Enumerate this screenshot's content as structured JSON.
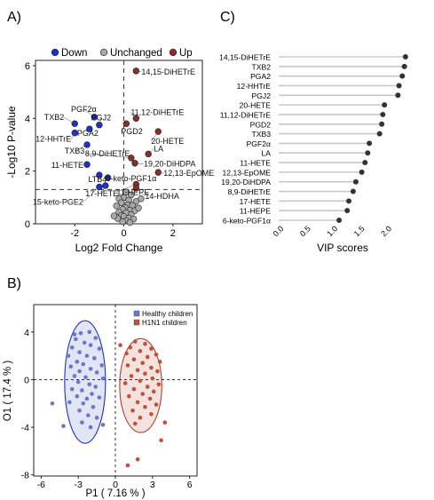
{
  "panel_labels": {
    "a": "A)",
    "b": "B)",
    "c": "C)"
  },
  "colors": {
    "down": "#1f2fc9",
    "unchanged": "#a9a9a9",
    "up": "#8b2e24",
    "healthy": "#6a78c8",
    "h1n1": "#c2503c",
    "vip_dot": "#333333",
    "vip_stem": "#c8c8c8"
  },
  "chart_data": [
    {
      "panel": "A",
      "type": "scatter",
      "title": "",
      "xlabel": "Log2 Fold Change",
      "ylabel": "-Log10 P-value",
      "xlim": [
        -3.6,
        3.2
      ],
      "ylim": [
        0,
        6.2
      ],
      "xticks": [
        -2,
        0,
        2
      ],
      "yticks": [
        0,
        2,
        4,
        6
      ],
      "thresholds": {
        "x": 0,
        "y": 1.3
      },
      "legend": {
        "position": "top",
        "entries": [
          "Down",
          "Unchanged",
          "Up"
        ]
      },
      "series": [
        {
          "name": "Down",
          "color_key": "down",
          "points": [
            {
              "x": -1.2,
              "y": 4.05,
              "label": "PGF2α"
            },
            {
              "x": -2.0,
              "y": 3.8,
              "label": "TXB2"
            },
            {
              "x": -1.0,
              "y": 3.75,
              "label": "PGJ2"
            },
            {
              "x": -1.4,
              "y": 3.6,
              "label": "PGA2"
            },
            {
              "x": -2.0,
              "y": 3.45,
              "label": "12-HHTrE"
            },
            {
              "x": -1.5,
              "y": 3.0,
              "label": "TXB3"
            },
            {
              "x": -1.5,
              "y": 2.25,
              "label": "11-HETE"
            },
            {
              "x": -1.0,
              "y": 1.85,
              "label": "LTB4"
            },
            {
              "x": -0.65,
              "y": 1.75,
              "label": "6-keto-PGF1α"
            },
            {
              "x": -0.75,
              "y": 1.45,
              "label": "17-HETE"
            },
            {
              "x": -1.0,
              "y": 1.4,
              "label": "15-keto-PGE2"
            }
          ]
        },
        {
          "name": "Unchanged",
          "color_key": "unchanged",
          "points": [
            {
              "x": 0.1,
              "y": 1.2
            },
            {
              "x": 0.3,
              "y": 1.1
            },
            {
              "x": 0.0,
              "y": 1.0
            },
            {
              "x": -0.2,
              "y": 0.95
            },
            {
              "x": 0.2,
              "y": 0.9
            },
            {
              "x": 0.5,
              "y": 0.85
            },
            {
              "x": -0.1,
              "y": 0.8
            },
            {
              "x": 0.15,
              "y": 0.72
            },
            {
              "x": 0.35,
              "y": 0.7
            },
            {
              "x": -0.3,
              "y": 0.68
            },
            {
              "x": 0.05,
              "y": 0.62
            },
            {
              "x": -0.05,
              "y": 0.55
            },
            {
              "x": 0.25,
              "y": 0.52
            },
            {
              "x": 0.45,
              "y": 0.5
            },
            {
              "x": -0.2,
              "y": 0.45
            },
            {
              "x": 0.1,
              "y": 0.42
            },
            {
              "x": 0.3,
              "y": 0.35
            },
            {
              "x": -0.1,
              "y": 0.32
            },
            {
              "x": 0.0,
              "y": 0.28
            },
            {
              "x": 0.2,
              "y": 0.22
            },
            {
              "x": -0.25,
              "y": 0.2
            },
            {
              "x": 0.4,
              "y": 0.18
            },
            {
              "x": 0.1,
              "y": 0.12
            },
            {
              "x": -0.05,
              "y": 0.08
            },
            {
              "x": 0.25,
              "y": 0.05
            },
            {
              "x": 0.6,
              "y": 0.6
            },
            {
              "x": -0.4,
              "y": 0.3
            },
            {
              "x": 0.7,
              "y": 0.95
            }
          ]
        },
        {
          "name": "Up",
          "color_key": "up",
          "points": [
            {
              "x": 0.5,
              "y": 5.8,
              "label": "14,15-DiHETrE"
            },
            {
              "x": 0.5,
              "y": 4.0,
              "label": "11,12-DiHETrE"
            },
            {
              "x": 0.1,
              "y": 3.8,
              "label": "PGD2"
            },
            {
              "x": 1.4,
              "y": 3.5,
              "label": "20-HETE"
            },
            {
              "x": 1.0,
              "y": 2.65,
              "label": "LA"
            },
            {
              "x": 0.3,
              "y": 2.5,
              "label": "8,9-DiHETrE"
            },
            {
              "x": 0.45,
              "y": 2.3,
              "label": "19,20-DiHDPA"
            },
            {
              "x": 1.4,
              "y": 1.95,
              "label": "12,13-EpOME"
            },
            {
              "x": 0.5,
              "y": 1.5,
              "label": "11-HEPE"
            },
            {
              "x": 0.5,
              "y": 1.35,
              "label": "14-HDHA"
            }
          ]
        }
      ]
    },
    {
      "panel": "B",
      "type": "scatter",
      "title": "",
      "xlabel": "P1 ( 7.16 % )",
      "ylabel": "O1 ( 17.4 % )",
      "xlim": [
        -6.6,
        6.6
      ],
      "ylim": [
        -8.1,
        6.3
      ],
      "xticks": [
        -6,
        -3,
        0,
        3,
        6
      ],
      "yticks": [
        -8,
        -4,
        0,
        4
      ],
      "legend": {
        "position": "top-right",
        "entries": [
          "Healthy children",
          "H1N1 children"
        ]
      },
      "series": [
        {
          "name": "Healthy children",
          "color_key": "healthy",
          "ellipse": {
            "cx": -2.45,
            "cy": -0.2,
            "rx": 1.65,
            "ry": 5.15
          },
          "points": [
            {
              "x": -2.8,
              "y": 3.9
            },
            {
              "x": -2.1,
              "y": 4.0
            },
            {
              "x": -3.2,
              "y": 3.4
            },
            {
              "x": -1.6,
              "y": 3.5
            },
            {
              "x": -2.5,
              "y": 3.1
            },
            {
              "x": -3.5,
              "y": 2.7
            },
            {
              "x": -2.0,
              "y": 2.9
            },
            {
              "x": -1.3,
              "y": 2.6
            },
            {
              "x": -2.9,
              "y": 2.3
            },
            {
              "x": -3.8,
              "y": 2.0
            },
            {
              "x": -2.3,
              "y": 2.0
            },
            {
              "x": -1.7,
              "y": 1.8
            },
            {
              "x": -3.1,
              "y": 1.5
            },
            {
              "x": -2.6,
              "y": 1.3
            },
            {
              "x": -1.1,
              "y": 1.2
            },
            {
              "x": -3.6,
              "y": 1.1
            },
            {
              "x": -2.0,
              "y": 0.9
            },
            {
              "x": -2.9,
              "y": 0.7
            },
            {
              "x": -1.5,
              "y": 0.6
            },
            {
              "x": -3.3,
              "y": 0.3
            },
            {
              "x": -2.4,
              "y": 0.2
            },
            {
              "x": -1.0,
              "y": 0.1
            },
            {
              "x": -3.0,
              "y": -0.2
            },
            {
              "x": -2.1,
              "y": -0.4
            },
            {
              "x": -1.6,
              "y": -0.6
            },
            {
              "x": -3.5,
              "y": -0.8
            },
            {
              "x": -2.7,
              "y": -0.9
            },
            {
              "x": -1.9,
              "y": -1.2
            },
            {
              "x": -3.1,
              "y": -1.4
            },
            {
              "x": -2.3,
              "y": -1.6
            },
            {
              "x": -1.3,
              "y": -1.5
            },
            {
              "x": -3.7,
              "y": -1.9
            },
            {
              "x": -2.6,
              "y": -2.0
            },
            {
              "x": -1.8,
              "y": -2.3
            },
            {
              "x": -2.9,
              "y": -2.6
            },
            {
              "x": -2.2,
              "y": -3.0
            },
            {
              "x": -1.5,
              "y": -3.2
            },
            {
              "x": -2.7,
              "y": -3.6
            },
            {
              "x": -2.0,
              "y": -4.0
            },
            {
              "x": -4.2,
              "y": -3.9
            },
            {
              "x": -5.1,
              "y": -2.0
            },
            {
              "x": -1.0,
              "y": -3.8
            },
            {
              "x": -3.3,
              "y": 3.8
            }
          ]
        },
        {
          "name": "H1N1 children",
          "color_key": "h1n1",
          "ellipse": {
            "cx": 2.05,
            "cy": -0.5,
            "rx": 1.7,
            "ry": 3.95
          },
          "points": [
            {
              "x": 1.6,
              "y": 3.2
            },
            {
              "x": 2.4,
              "y": 3.0
            },
            {
              "x": 1.2,
              "y": 2.7
            },
            {
              "x": 2.9,
              "y": 2.6
            },
            {
              "x": 2.0,
              "y": 2.4
            },
            {
              "x": 0.9,
              "y": 2.2
            },
            {
              "x": 3.3,
              "y": 2.1
            },
            {
              "x": 2.6,
              "y": 1.9
            },
            {
              "x": 1.5,
              "y": 1.7
            },
            {
              "x": 3.6,
              "y": 1.5
            },
            {
              "x": 2.2,
              "y": 1.4
            },
            {
              "x": 1.0,
              "y": 1.2
            },
            {
              "x": 2.9,
              "y": 1.0
            },
            {
              "x": 1.8,
              "y": 0.8
            },
            {
              "x": 3.4,
              "y": 0.7
            },
            {
              "x": 2.4,
              "y": 0.5
            },
            {
              "x": 1.3,
              "y": 0.3
            },
            {
              "x": 3.0,
              "y": 0.1
            },
            {
              "x": 2.0,
              "y": -0.1
            },
            {
              "x": 0.8,
              "y": -0.3
            },
            {
              "x": 3.5,
              "y": -0.4
            },
            {
              "x": 2.6,
              "y": -0.6
            },
            {
              "x": 1.5,
              "y": -0.8
            },
            {
              "x": 3.1,
              "y": -1.0
            },
            {
              "x": 2.2,
              "y": -1.2
            },
            {
              "x": 1.1,
              "y": -1.4
            },
            {
              "x": 2.8,
              "y": -1.6
            },
            {
              "x": 1.8,
              "y": -1.9
            },
            {
              "x": 3.3,
              "y": -2.1
            },
            {
              "x": 2.4,
              "y": -2.3
            },
            {
              "x": 1.4,
              "y": -2.6
            },
            {
              "x": 2.9,
              "y": -2.9
            },
            {
              "x": 2.0,
              "y": -3.2
            },
            {
              "x": 1.6,
              "y": -3.7
            },
            {
              "x": 4.0,
              "y": -3.6
            },
            {
              "x": 3.7,
              "y": -5.1
            },
            {
              "x": 1.8,
              "y": -6.7
            },
            {
              "x": 1.0,
              "y": -7.2
            },
            {
              "x": 0.4,
              "y": 2.9
            }
          ]
        }
      ]
    },
    {
      "panel": "C",
      "type": "lollipop",
      "title": "",
      "xlabel": "VIP scores",
      "ylabel": "",
      "xlim": [
        -0.1,
        2.4
      ],
      "xticks": [
        0.0,
        0.5,
        1.0,
        1.5,
        2.0
      ],
      "xtick_labels": [
        "0.0",
        "0.5",
        "1.0",
        "1.5",
        "2.0"
      ],
      "categories": [
        "14,15-DiHETrE",
        "TXB2",
        "PGA2",
        "12-HHTrE",
        "PGJ2",
        "20-HETE",
        "11,12-DiHETrE",
        "PGD2",
        "TXB3",
        "PGF2α",
        "LA",
        "11-HETE",
        "12,13-EpOME",
        "19,20-DiHDPA",
        "8,9-DiHETrE",
        "17-HETE",
        "11-HEPE",
        "6-keto-PGF1α"
      ],
      "values": [
        2.25,
        2.23,
        2.19,
        2.13,
        2.11,
        1.86,
        1.83,
        1.81,
        1.77,
        1.58,
        1.55,
        1.5,
        1.44,
        1.33,
        1.28,
        1.2,
        1.17,
        1.02
      ]
    }
  ]
}
